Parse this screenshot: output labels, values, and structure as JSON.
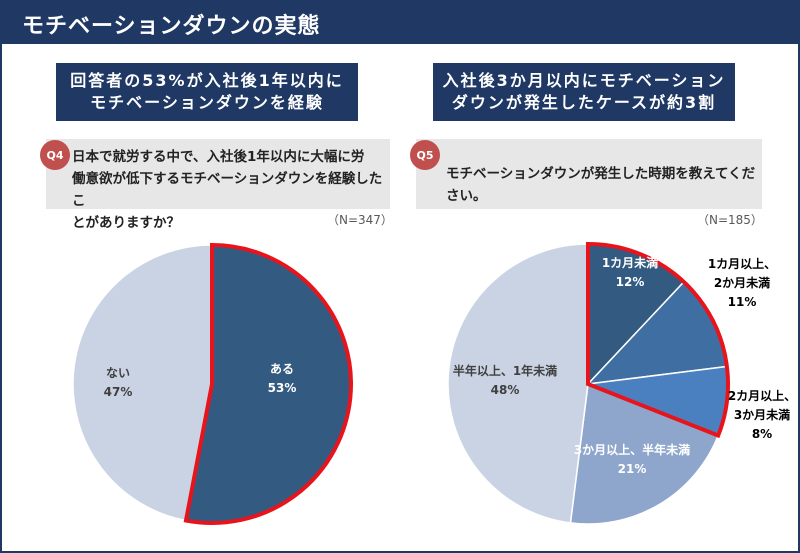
{
  "header": {
    "title": "モチベーションダウンの実態"
  },
  "left": {
    "banner": [
      "回答者の53%が入社後1年以内に",
      "モチベーションダウンを経験"
    ],
    "badge": "Q4",
    "question": [
      "日本で就労する中で、入社後1年以内に大幅に労",
      "働意欲が低下するモチベーションダウンを経験したこ",
      "とがありますか？"
    ],
    "n": "（N=347）"
  },
  "right": {
    "banner": [
      "入社後3か月以内にモチベーション",
      "ダウンが発生したケースが約3割"
    ],
    "badge": "Q5",
    "question": [
      "モチベーションダウンが発生した時期を教えてください。"
    ],
    "n": "（N=185）"
  },
  "colors": {
    "navy": "#1f3864",
    "highlight": "#e8141c",
    "light": "#cad3e3"
  },
  "chart_data": [
    {
      "type": "pie",
      "categories": [
        "ある",
        "ない"
      ],
      "values": [
        53,
        47
      ],
      "value_labels": [
        "53%",
        "47%"
      ],
      "slice_colors": [
        "#335a80",
        "#cad3e3"
      ],
      "highlighted": [
        "ある"
      ]
    },
    {
      "type": "pie",
      "categories": [
        "1カ月未満",
        "1カ月以上、2か月未満",
        "2カ月以上、3か月未満",
        "3か月以上、半年未満",
        "半年以上、1年未満"
      ],
      "label_lines": [
        [
          "1カ月未満"
        ],
        [
          "1カ月以上、",
          "2か月未満"
        ],
        [
          "2カ月以上、",
          "3か月未満"
        ],
        [
          "3か月以上、半年未満"
        ],
        [
          "半年以上、1年未満"
        ]
      ],
      "values": [
        12,
        11,
        8,
        21,
        48
      ],
      "value_labels": [
        "12%",
        "11%",
        "8%",
        "21%",
        "48%"
      ],
      "slice_colors": [
        "#335a80",
        "#3f6ea3",
        "#4a80c0",
        "#8fa6cc",
        "#cad3e3"
      ],
      "highlighted": [
        "1カ月未満",
        "1カ月以上、2か月未満",
        "2カ月以上、3か月未満"
      ]
    }
  ]
}
